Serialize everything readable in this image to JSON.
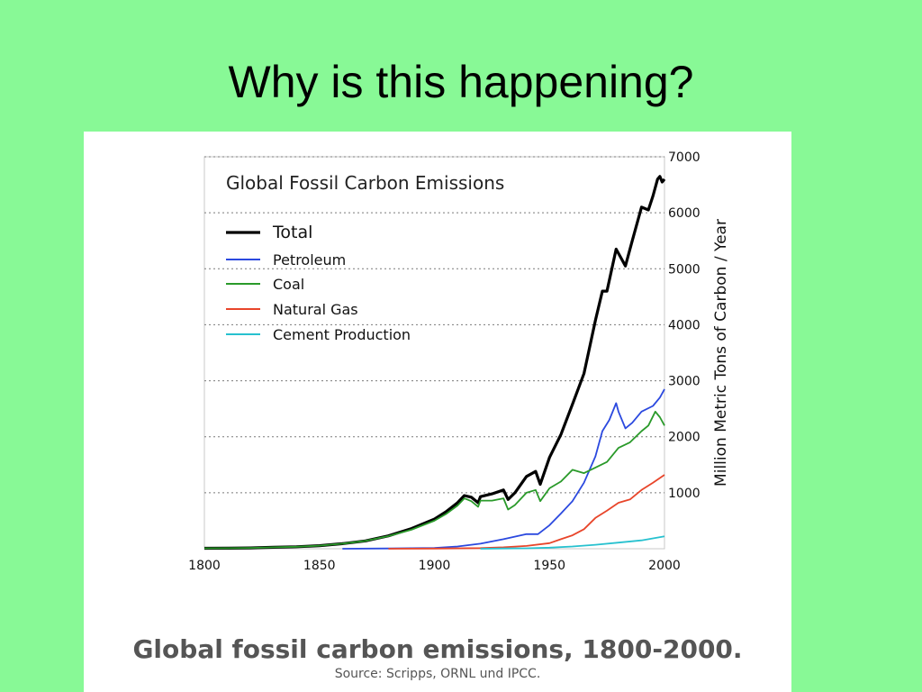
{
  "slide": {
    "title": "Why is this happening?",
    "caption": "Global fossil carbon emissions, 1800-2000.",
    "source": "Source: Scripps, ORNL und IPCC."
  },
  "chart_data": {
    "type": "line",
    "title": "Global Fossil Carbon Emissions",
    "xlabel": "",
    "ylabel": "Million Metric Tons of Carbon / Year",
    "xlim": [
      1800,
      2000
    ],
    "ylim": [
      0,
      7000
    ],
    "x_ticks": [
      "1800",
      "1850",
      "1900",
      "1950",
      "2000"
    ],
    "y_ticks": [
      "1000",
      "2000",
      "3000",
      "4000",
      "5000",
      "6000",
      "7000"
    ],
    "grid": "horizontal dotted",
    "legend_position": "top-left",
    "series": [
      {
        "name": "Total",
        "color": "#000000",
        "points": [
          [
            1800,
            8
          ],
          [
            1810,
            10
          ],
          [
            1820,
            14
          ],
          [
            1830,
            25
          ],
          [
            1840,
            35
          ],
          [
            1850,
            55
          ],
          [
            1860,
            90
          ],
          [
            1870,
            140
          ],
          [
            1880,
            230
          ],
          [
            1890,
            360
          ],
          [
            1900,
            530
          ],
          [
            1905,
            660
          ],
          [
            1910,
            820
          ],
          [
            1913,
            950
          ],
          [
            1916,
            920
          ],
          [
            1919,
            820
          ],
          [
            1920,
            930
          ],
          [
            1925,
            980
          ],
          [
            1930,
            1050
          ],
          [
            1932,
            880
          ],
          [
            1935,
            1000
          ],
          [
            1940,
            1290
          ],
          [
            1944,
            1380
          ],
          [
            1946,
            1150
          ],
          [
            1950,
            1630
          ],
          [
            1955,
            2040
          ],
          [
            1960,
            2580
          ],
          [
            1965,
            3130
          ],
          [
            1970,
            4080
          ],
          [
            1973,
            4600
          ],
          [
            1975,
            4600
          ],
          [
            1979,
            5350
          ],
          [
            1981,
            5200
          ],
          [
            1983,
            5050
          ],
          [
            1986,
            5500
          ],
          [
            1990,
            6100
          ],
          [
            1993,
            6050
          ],
          [
            1995,
            6300
          ],
          [
            1997,
            6600
          ],
          [
            1998,
            6650
          ],
          [
            1999,
            6550
          ],
          [
            2000,
            6600
          ]
        ]
      },
      {
        "name": "Petroleum",
        "color": "#2b49df",
        "points": [
          [
            1860,
            0
          ],
          [
            1880,
            5
          ],
          [
            1900,
            15
          ],
          [
            1910,
            40
          ],
          [
            1920,
            90
          ],
          [
            1930,
            170
          ],
          [
            1940,
            260
          ],
          [
            1945,
            260
          ],
          [
            1950,
            420
          ],
          [
            1955,
            630
          ],
          [
            1960,
            850
          ],
          [
            1965,
            1180
          ],
          [
            1970,
            1650
          ],
          [
            1973,
            2100
          ],
          [
            1976,
            2300
          ],
          [
            1979,
            2600
          ],
          [
            1980,
            2450
          ],
          [
            1983,
            2150
          ],
          [
            1986,
            2250
          ],
          [
            1990,
            2450
          ],
          [
            1995,
            2550
          ],
          [
            1998,
            2700
          ],
          [
            2000,
            2850
          ]
        ]
      },
      {
        "name": "Coal",
        "color": "#2a9a2a",
        "points": [
          [
            1800,
            8
          ],
          [
            1810,
            10
          ],
          [
            1820,
            14
          ],
          [
            1830,
            25
          ],
          [
            1840,
            35
          ],
          [
            1850,
            55
          ],
          [
            1860,
            90
          ],
          [
            1870,
            140
          ],
          [
            1880,
            225
          ],
          [
            1890,
            340
          ],
          [
            1900,
            500
          ],
          [
            1905,
            620
          ],
          [
            1910,
            770
          ],
          [
            1913,
            900
          ],
          [
            1916,
            850
          ],
          [
            1919,
            750
          ],
          [
            1920,
            860
          ],
          [
            1925,
            860
          ],
          [
            1930,
            900
          ],
          [
            1932,
            700
          ],
          [
            1935,
            780
          ],
          [
            1940,
            1000
          ],
          [
            1944,
            1050
          ],
          [
            1946,
            850
          ],
          [
            1950,
            1080
          ],
          [
            1955,
            1200
          ],
          [
            1960,
            1410
          ],
          [
            1965,
            1350
          ],
          [
            1970,
            1450
          ],
          [
            1975,
            1550
          ],
          [
            1980,
            1800
          ],
          [
            1985,
            1900
          ],
          [
            1990,
            2100
          ],
          [
            1993,
            2200
          ],
          [
            1996,
            2450
          ],
          [
            1998,
            2350
          ],
          [
            2000,
            2200
          ]
        ]
      },
      {
        "name": "Natural Gas",
        "color": "#e8452a",
        "points": [
          [
            1880,
            0
          ],
          [
            1900,
            3
          ],
          [
            1920,
            12
          ],
          [
            1930,
            25
          ],
          [
            1940,
            50
          ],
          [
            1950,
            100
          ],
          [
            1955,
            170
          ],
          [
            1960,
            240
          ],
          [
            1965,
            350
          ],
          [
            1970,
            550
          ],
          [
            1975,
            680
          ],
          [
            1980,
            820
          ],
          [
            1985,
            880
          ],
          [
            1990,
            1050
          ],
          [
            1995,
            1180
          ],
          [
            2000,
            1320
          ]
        ]
      },
      {
        "name": "Cement Production",
        "color": "#27c1cf",
        "points": [
          [
            1920,
            0
          ],
          [
            1930,
            5
          ],
          [
            1940,
            8
          ],
          [
            1950,
            20
          ],
          [
            1960,
            40
          ],
          [
            1970,
            70
          ],
          [
            1980,
            110
          ],
          [
            1990,
            150
          ],
          [
            2000,
            220
          ]
        ]
      }
    ]
  }
}
